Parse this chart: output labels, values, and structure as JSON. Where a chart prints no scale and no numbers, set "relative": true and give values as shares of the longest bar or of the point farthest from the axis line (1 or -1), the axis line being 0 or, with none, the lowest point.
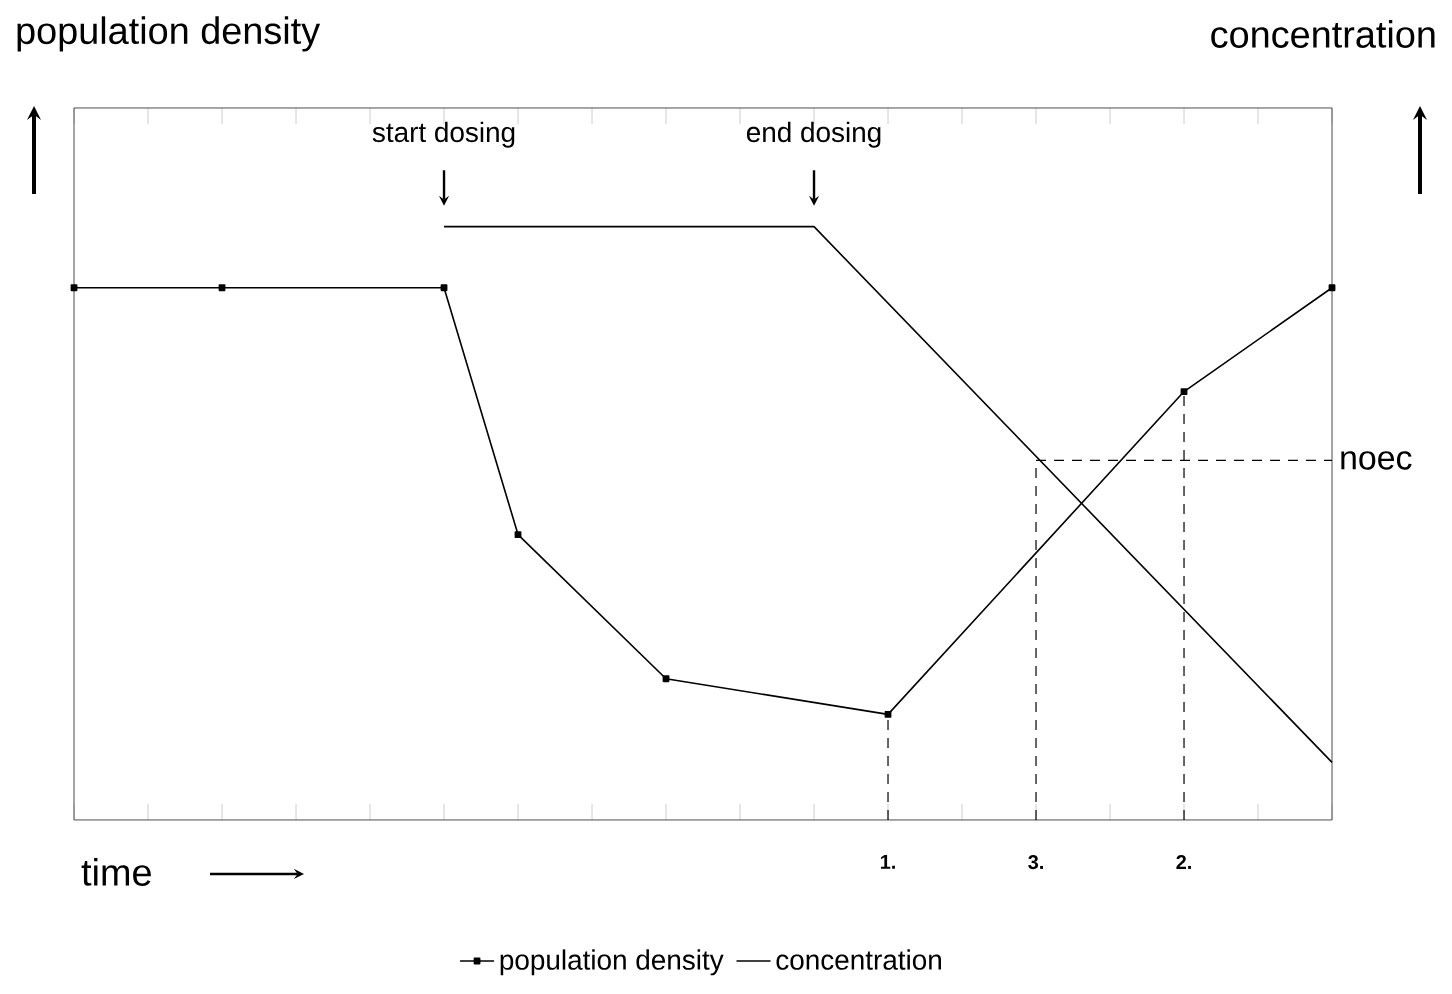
{
  "chart_data": {
    "type": "line",
    "relative": true,
    "ylabel": "population density",
    "y2label": "concentration",
    "xlabel": "time",
    "categories": [
      null,
      null,
      null,
      null,
      null,
      null,
      null,
      null,
      null,
      null,
      null,
      "1.",
      null,
      "3.",
      null,
      "2.",
      null,
      null
    ],
    "series": [
      {
        "name": "population density",
        "color": "#000000",
        "marker": "square",
        "values": [
          0.897,
          null,
          0.897,
          null,
          null,
          0.897,
          0.481,
          null,
          0.238,
          null,
          null,
          0.178,
          null,
          null,
          null,
          0.722,
          null,
          0.897
        ]
      },
      {
        "name": "concentration",
        "color": "#000000",
        "marker": "none",
        "values": [
          null,
          null,
          null,
          null,
          null,
          1,
          null,
          null,
          null,
          null,
          1,
          null,
          null,
          null,
          null,
          null,
          null,
          0.097
        ]
      }
    ],
    "ref_lines": [
      {
        "axis": "x",
        "value": "1.",
        "color": "#000000",
        "line_style": "dashed"
      },
      {
        "axis": "x",
        "value": "3.",
        "color": "#000000",
        "line_style": "dashed"
      },
      {
        "axis": "x",
        "value": "2.",
        "color": "#000000",
        "line_style": "dashed"
      },
      {
        "axis": "y",
        "value": 0.606,
        "label": "noec",
        "color": "#000000",
        "line_style": "dashed"
      }
    ],
    "annotations": [
      "start dosing",
      "end dosing"
    ],
    "legend": "bottom"
  }
}
